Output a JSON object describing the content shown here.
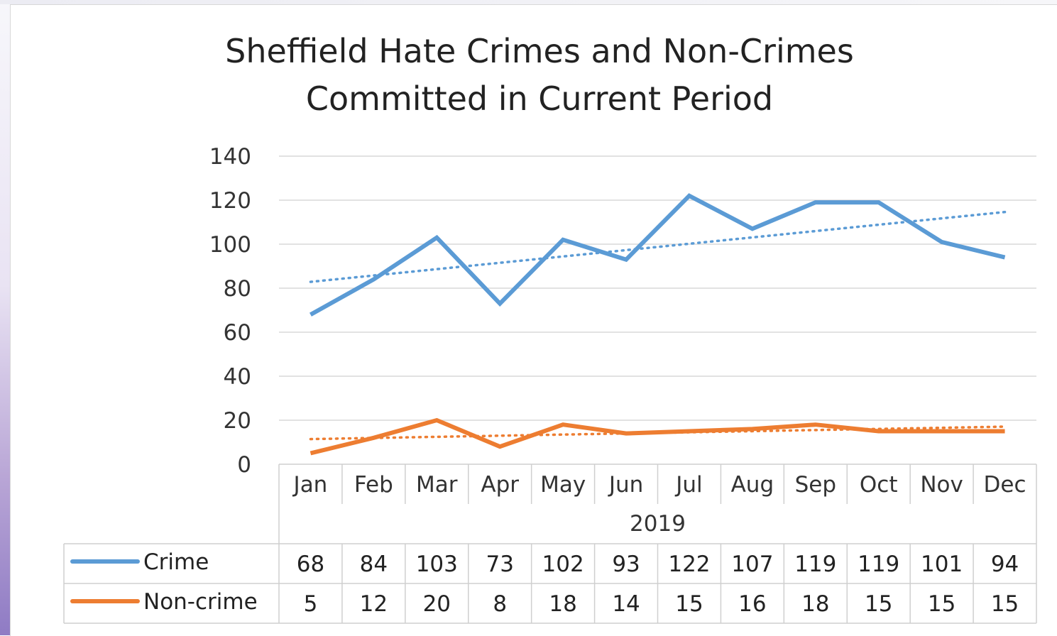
{
  "chart_data": {
    "type": "line",
    "title_lines": [
      "Sheffield Hate Crimes and Non-Crimes",
      "Committed in Current Period"
    ],
    "categories": [
      "Jan",
      "Feb",
      "Mar",
      "Apr",
      "May",
      "Jun",
      "Jul",
      "Aug",
      "Sep",
      "Oct",
      "Nov",
      "Dec"
    ],
    "year_label": "2019",
    "ylim": [
      0,
      140
    ],
    "yticks": [
      0,
      20,
      40,
      60,
      80,
      100,
      120,
      140
    ],
    "grid": true,
    "trendlines": true,
    "series": [
      {
        "name": "Crime",
        "color": "#5b9bd5",
        "values": [
          68,
          84,
          103,
          73,
          102,
          93,
          122,
          107,
          119,
          119,
          101,
          94
        ]
      },
      {
        "name": "Non-crime",
        "color": "#ed7d31",
        "values": [
          5,
          12,
          20,
          8,
          18,
          14,
          15,
          16,
          18,
          15,
          15,
          15
        ]
      }
    ],
    "data_table": true
  }
}
